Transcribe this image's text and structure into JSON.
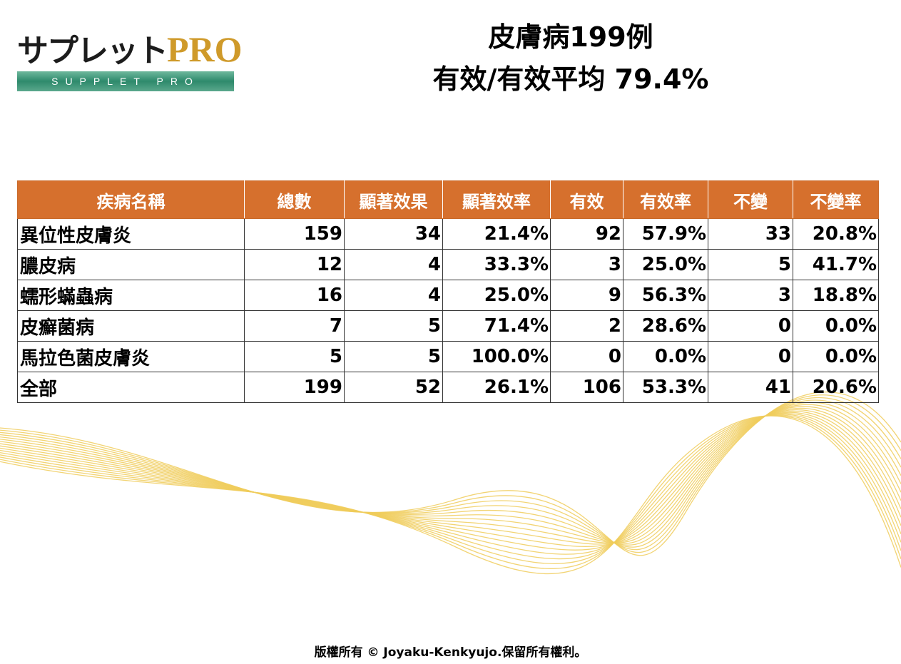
{
  "logo": {
    "main": "サプレット",
    "pro": "PRO",
    "sub": "SUPPLET PRO"
  },
  "title": {
    "line1": "皮膚病199例",
    "line2": "有效/有效平均  79.4%"
  },
  "colors": {
    "header_bg": "#d6702d",
    "logo_bar": "#2e8a6c",
    "logo_pro": "#cf9a2a",
    "wave": "#f0cd5c"
  },
  "table": {
    "headers": [
      "疾病名稱",
      "總數",
      "顯著效果",
      "顯著效率",
      "有效",
      "有效率",
      "不變",
      "不變率"
    ],
    "rows": [
      [
        "異位性皮膚炎",
        "159",
        "34",
        "21.4%",
        "92",
        "57.9%",
        "33",
        "20.8%"
      ],
      [
        "膿皮病",
        "12",
        "4",
        "33.3%",
        "3",
        "25.0%",
        "5",
        "41.7%"
      ],
      [
        "蠕形蟎蟲病",
        "16",
        "4",
        "25.0%",
        "9",
        "56.3%",
        "3",
        "18.8%"
      ],
      [
        "皮癬菌病",
        "7",
        "5",
        "71.4%",
        "2",
        "28.6%",
        "0",
        "0.0%"
      ],
      [
        "馬拉色菌皮膚炎",
        "5",
        "5",
        "100.0%",
        "0",
        "0.0%",
        "0",
        "0.0%"
      ],
      [
        "全部",
        "199",
        "52",
        "26.1%",
        "106",
        "53.3%",
        "41",
        "20.6%"
      ]
    ]
  },
  "footer": "版權所有 © Joyaku-Kenkyujo.保留所有權利。"
}
